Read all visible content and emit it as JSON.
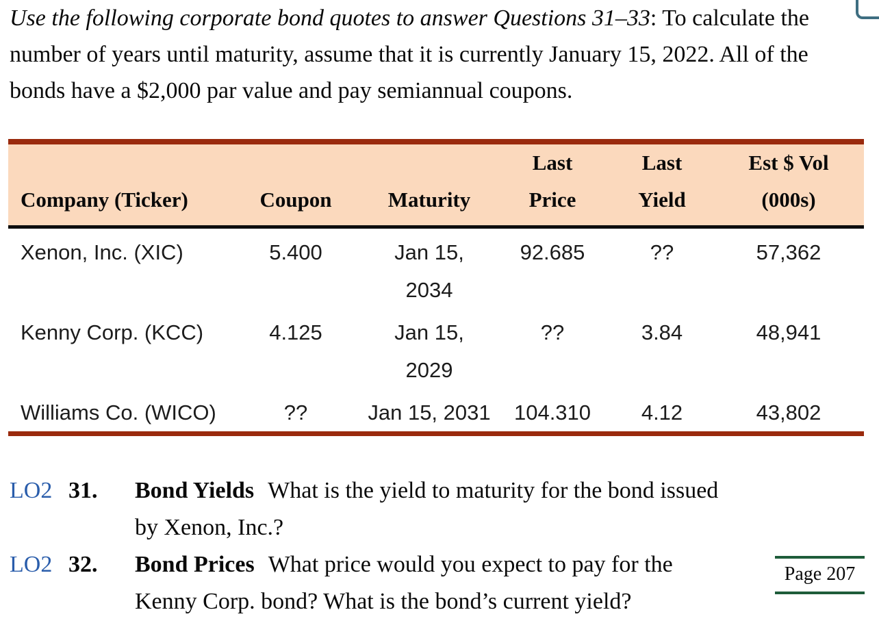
{
  "intro": {
    "italic": "Use the following corporate bond quotes to answer Questions 31–33",
    "regular": ": To calculate the number of years until maturity, assume that it is currently January 15, 2022. All of the bonds have a $2,000 par value and pay semiannual coupons."
  },
  "table": {
    "headers": {
      "company": "Company (Ticker)",
      "coupon": "Coupon",
      "maturity": "Maturity",
      "last_price": "Last\nPrice",
      "last_yield": "Last\nYield",
      "est_vol": "Est $ Vol\n(000s)"
    },
    "rows": [
      {
        "company": "Xenon, Inc. (XIC)",
        "coupon": "5.400",
        "maturity": "Jan 15,\n2034",
        "last_price": "92.685",
        "last_yield": "??",
        "est_vol": "57,362"
      },
      {
        "company": "Kenny Corp. (KCC)",
        "coupon": "4.125",
        "maturity": "Jan 15,\n2029",
        "last_price": "??",
        "last_yield": "3.84",
        "est_vol": "48,941"
      },
      {
        "company": "Williams Co. (WICO)",
        "coupon": "??",
        "maturity": "Jan 15, 2031",
        "last_price": "104.310",
        "last_yield": "4.12",
        "est_vol": "43,802"
      }
    ]
  },
  "questions": [
    {
      "lo": "LO2",
      "number": "31.",
      "title": "Bond Yields",
      "text": "What is the yield to maturity for the bond issued by Xenon, Inc.?"
    },
    {
      "lo": "LO2",
      "number": "32.",
      "title": "Bond Prices",
      "text": "What price would you expect to pay for the Kenny Corp. bond? What is the bond’s current yield?"
    }
  ],
  "page_marker": {
    "label": "Page 207"
  },
  "colors": {
    "table_header_bg": "#fbd9bd",
    "table_rule_red": "#9a2a0d",
    "table_rule_black": "#0d0d0d",
    "lo_blue": "#2a5dab",
    "page_marker_green": "#1e5c3a",
    "corner_border_teal": "#3e6e81"
  }
}
